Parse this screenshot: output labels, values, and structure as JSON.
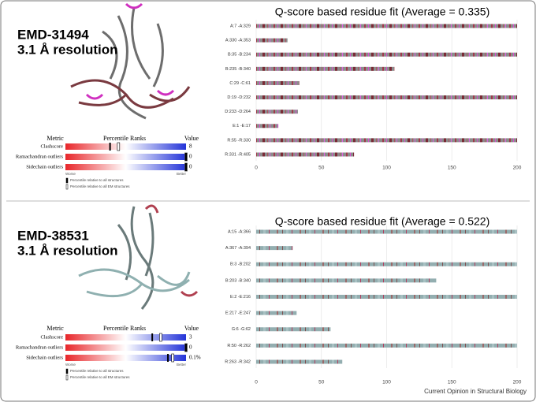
{
  "panels": [
    {
      "entry": "EMD-31494",
      "resolution": "3.1 Å resolution",
      "validation": {
        "headers": [
          "Metric",
          "Percentile Ranks",
          "Value"
        ],
        "rows": [
          {
            "metric": "Clashscore",
            "percentile_all": 37,
            "percentile_em": 44,
            "value": "8"
          },
          {
            "metric": "Ramachandran outliers",
            "percentile_all": 100,
            "percentile_em": 100,
            "value": "0"
          },
          {
            "metric": "Sidechain outliers",
            "percentile_all": 100,
            "percentile_em": 100,
            "value": "0"
          }
        ],
        "worse": "Worse",
        "better": "Better",
        "legend": [
          "Percentile relative to all structures",
          "Percentile relative to all EM structures"
        ]
      },
      "qscore": {
        "type": "bar",
        "title": "Q-score based residue fit (Average = 0.335)",
        "categories": [
          "A:7 -A:329",
          "A:330 -A:353",
          "B:35 -B:234",
          "B:235 -B:340",
          "C:29 -C:61",
          "D:19 -D:232",
          "D:233 -D:264",
          "E:1 -E:17",
          "R:55 -R:330",
          "R:331 -R:405"
        ],
        "values": [
          200,
          24,
          200,
          106,
          33,
          200,
          32,
          17,
          200,
          75
        ],
        "xlim": [
          0,
          200
        ],
        "xticks": [
          0,
          50,
          100,
          150,
          200
        ],
        "grid": true
      }
    },
    {
      "entry": "EMD-38531",
      "resolution": "3.1 Å resolution",
      "validation": {
        "headers": [
          "Metric",
          "Percentile Ranks",
          "Value"
        ],
        "rows": [
          {
            "metric": "Clashscore",
            "percentile_all": 72,
            "percentile_em": 79,
            "value": "3"
          },
          {
            "metric": "Ramachandran outliers",
            "percentile_all": 100,
            "percentile_em": 100,
            "value": "0"
          },
          {
            "metric": "Sidechain outliers",
            "percentile_all": 85,
            "percentile_em": 89,
            "value": "0.1%"
          }
        ],
        "worse": "Worse",
        "better": "Better",
        "legend": [
          "Percentile relative to all structures",
          "Percentile relative to all EM structures"
        ]
      },
      "qscore": {
        "type": "bar",
        "title": "Q-score based residue fit (Average = 0.522)",
        "categories": [
          "A:15 -A:366",
          "A:367 -A:394",
          "B:3 -B:202",
          "B:203 -B:340",
          "E:2 -E:216",
          "E:217 -E:247",
          "G:6 -G:62",
          "R:50 -R:262",
          "R:263 -R:342"
        ],
        "values": [
          200,
          28,
          200,
          138,
          200,
          31,
          57,
          200,
          66
        ],
        "xlim": [
          0,
          200
        ],
        "xticks": [
          0,
          50,
          100,
          150,
          200
        ],
        "grid": true
      }
    }
  ],
  "footer": "Current Opinion in Structural Biology"
}
